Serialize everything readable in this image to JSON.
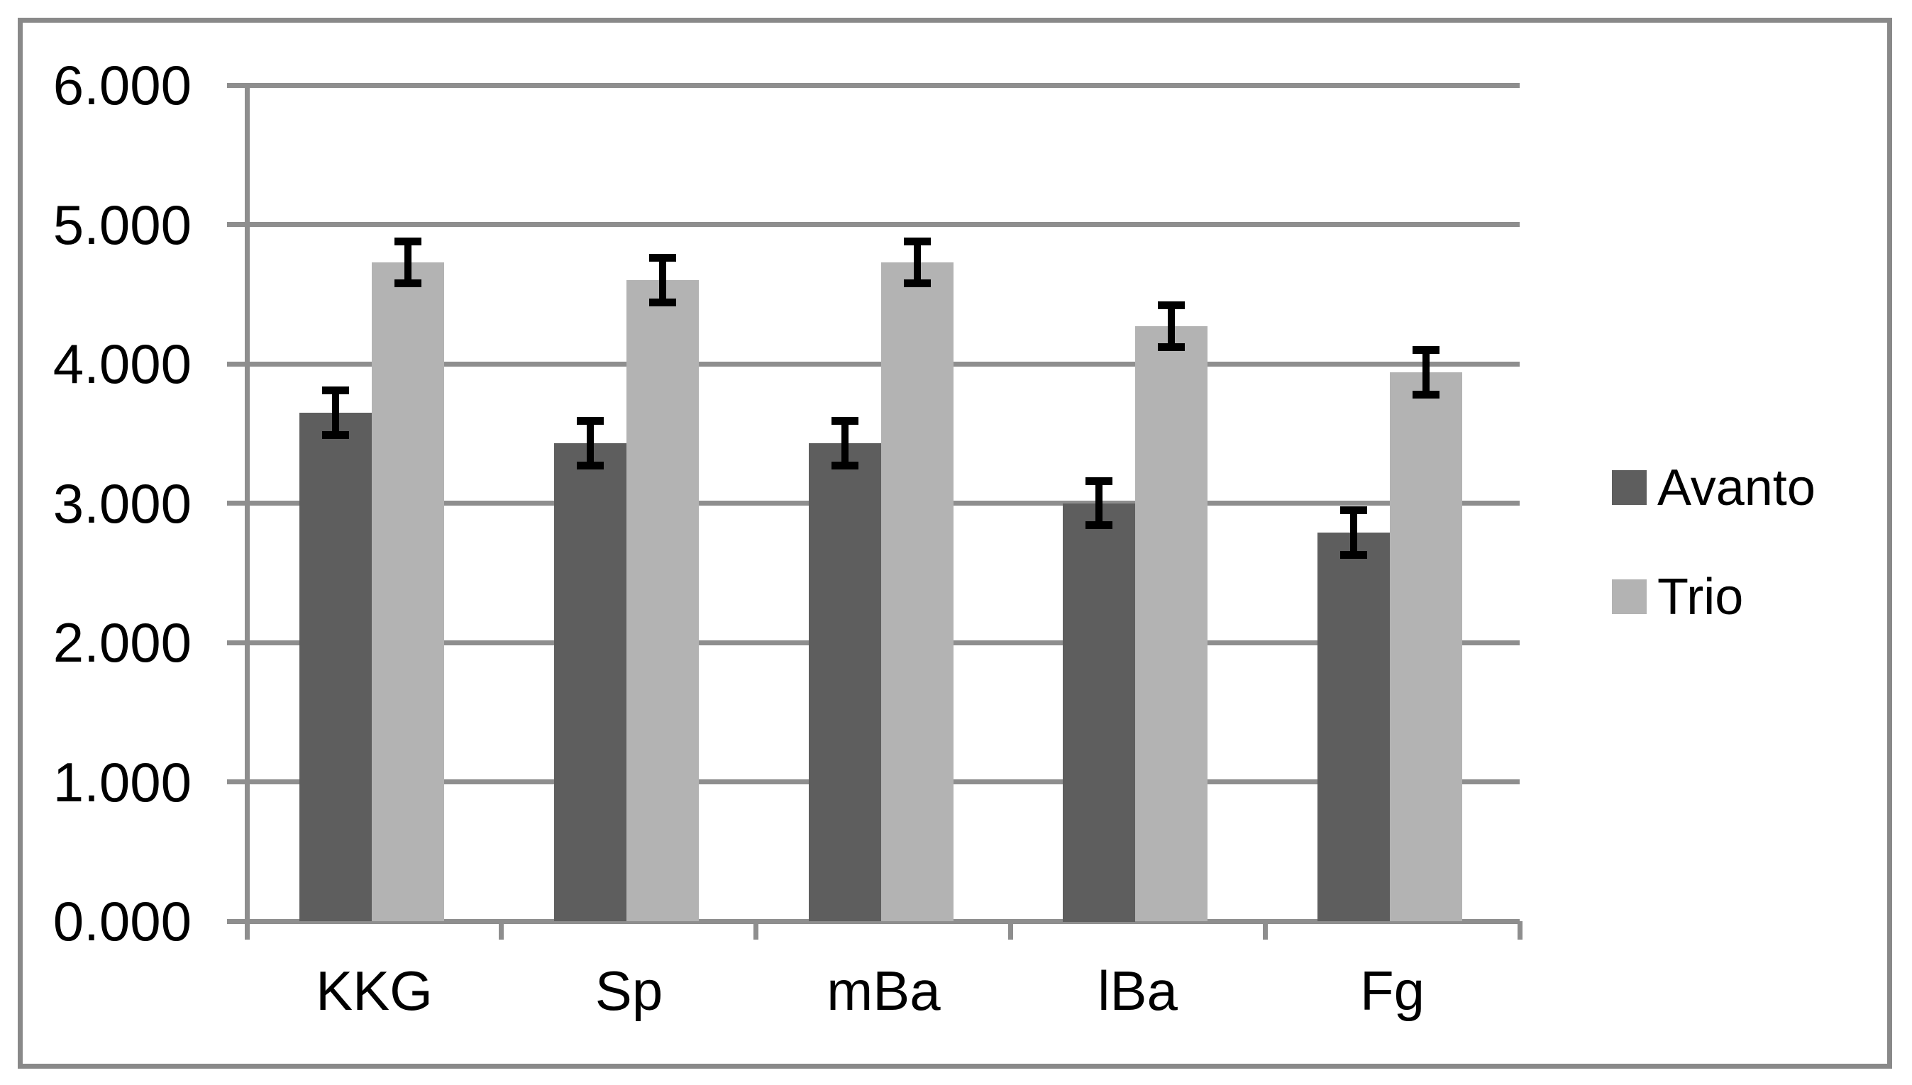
{
  "chart_data": {
    "type": "bar",
    "title": "",
    "xlabel": "",
    "ylabel": "",
    "categories": [
      "KKG",
      "Sp",
      "mBa",
      "lBa",
      "Fg"
    ],
    "series": [
      {
        "name": "Avanto",
        "color": "#5e5e5e",
        "values": [
          3.65,
          3.43,
          3.43,
          3.0,
          2.79
        ],
        "errors": [
          0.16,
          0.16,
          0.16,
          0.16,
          0.16
        ]
      },
      {
        "name": "Trio",
        "color": "#b3b3b3",
        "values": [
          4.73,
          4.6,
          4.73,
          4.27,
          3.94
        ],
        "errors": [
          0.15,
          0.16,
          0.15,
          0.15,
          0.16
        ]
      }
    ],
    "y_axis": {
      "min": 0,
      "max": 6,
      "step": 1,
      "tick_labels": [
        "0.000",
        "1.000",
        "2.000",
        "3.000",
        "4.000",
        "5.000",
        "6.000"
      ]
    },
    "grid": true,
    "legend_position": "right",
    "colors": {
      "gridline": "#8e8e8e",
      "axis": "#8e8e8e",
      "frame": "#898989",
      "error_bar": "#000000",
      "text": "#000000",
      "background": "#ffffff"
    }
  }
}
